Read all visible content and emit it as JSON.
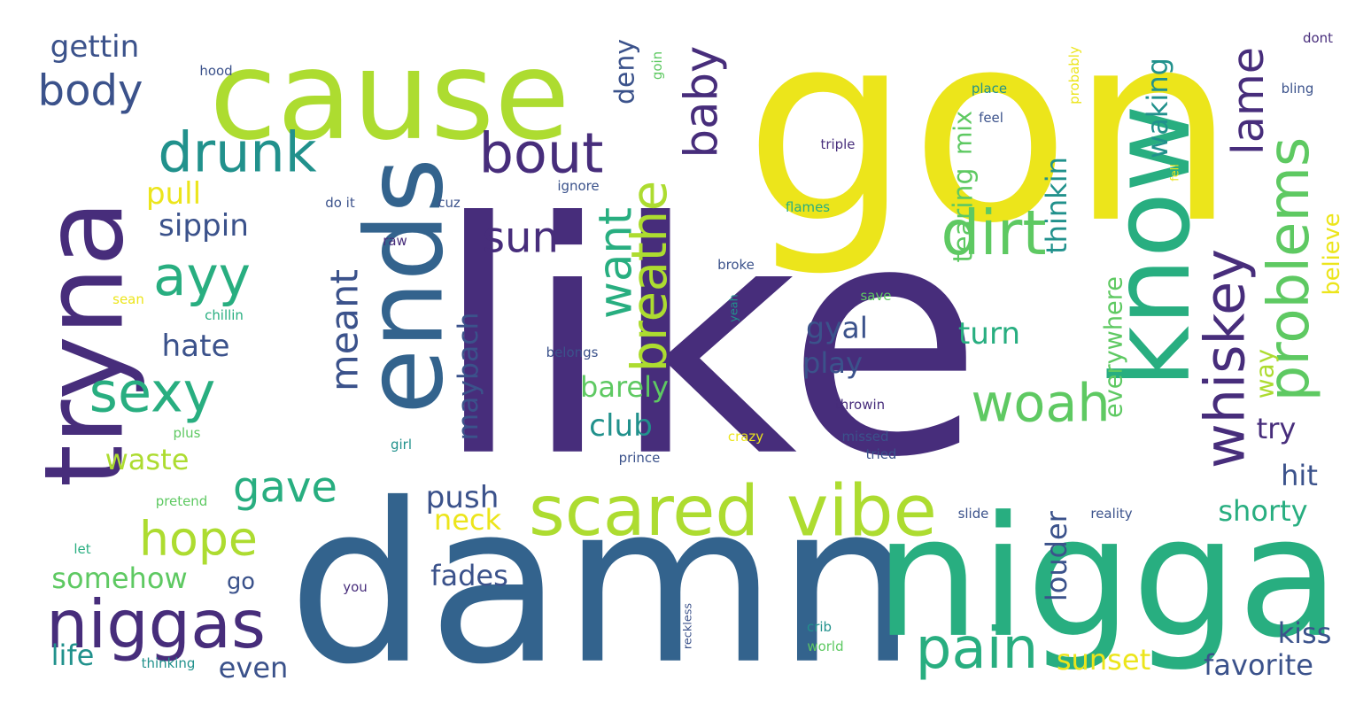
{
  "palette": {
    "dark_purple": "#472d7b",
    "indigo": "#3b528b",
    "blue": "#33638d",
    "teal": "#21918c",
    "green": "#28ae80",
    "light_green": "#5ec962",
    "lime": "#addc30",
    "yellow": "#ece51b"
  },
  "words": [
    {
      "text": "like",
      "color": "dark_purple"
    },
    {
      "text": "gon",
      "color": "yellow"
    },
    {
      "text": "damn",
      "color": "blue"
    },
    {
      "text": "cause",
      "color": "lime"
    },
    {
      "text": "nigga",
      "color": "green"
    },
    {
      "text": "tryna",
      "color": "dark_purple"
    },
    {
      "text": "ends",
      "color": "blue"
    },
    {
      "text": "know",
      "color": "green"
    },
    {
      "text": "scared",
      "color": "lime"
    },
    {
      "text": "vibe",
      "color": "lime"
    },
    {
      "text": "niggas",
      "color": "dark_purple"
    },
    {
      "text": "hope",
      "color": "lime"
    },
    {
      "text": "pain",
      "color": "green"
    },
    {
      "text": "dirt",
      "color": "light_green"
    },
    {
      "text": "drunk",
      "color": "teal"
    },
    {
      "text": "ayy",
      "color": "green"
    },
    {
      "text": "sexy",
      "color": "green"
    },
    {
      "text": "bout",
      "color": "dark_purple"
    },
    {
      "text": "woah",
      "color": "light_green"
    },
    {
      "text": "problems",
      "color": "light_green"
    },
    {
      "text": "whiskey",
      "color": "dark_purple"
    },
    {
      "text": "breathe",
      "color": "lime"
    },
    {
      "text": "want",
      "color": "green"
    },
    {
      "text": "baby",
      "color": "dark_purple"
    },
    {
      "text": "lame",
      "color": "dark_purple"
    },
    {
      "text": "body",
      "color": "indigo"
    },
    {
      "text": "gave",
      "color": "green"
    },
    {
      "text": "sun",
      "color": "dark_purple"
    },
    {
      "text": "meant",
      "color": "indigo"
    },
    {
      "text": "gettin",
      "color": "indigo"
    },
    {
      "text": "sippin",
      "color": "indigo"
    },
    {
      "text": "hate",
      "color": "indigo"
    },
    {
      "text": "pull",
      "color": "yellow"
    },
    {
      "text": "waste",
      "color": "lime"
    },
    {
      "text": "somehow",
      "color": "light_green"
    },
    {
      "text": "life",
      "color": "teal"
    },
    {
      "text": "go",
      "color": "indigo"
    },
    {
      "text": "even",
      "color": "indigo"
    },
    {
      "text": "fades",
      "color": "indigo"
    },
    {
      "text": "push",
      "color": "indigo"
    },
    {
      "text": "neck",
      "color": "yellow"
    },
    {
      "text": "club",
      "color": "teal"
    },
    {
      "text": "barely",
      "color": "light_green"
    },
    {
      "text": "maybach",
      "color": "indigo"
    },
    {
      "text": "deny",
      "color": "indigo"
    },
    {
      "text": "play",
      "color": "indigo"
    },
    {
      "text": "gyal",
      "color": "indigo"
    },
    {
      "text": "turn",
      "color": "green"
    },
    {
      "text": "tearing",
      "color": "light_green"
    },
    {
      "text": "mix",
      "color": "light_green"
    },
    {
      "text": "thinkin",
      "color": "teal"
    },
    {
      "text": "waking",
      "color": "teal"
    },
    {
      "text": "everywhere",
      "color": "light_green"
    },
    {
      "text": "louder",
      "color": "indigo"
    },
    {
      "text": "shorty",
      "color": "green"
    },
    {
      "text": "sunset",
      "color": "yellow"
    },
    {
      "text": "favorite",
      "color": "indigo"
    },
    {
      "text": "kiss",
      "color": "indigo"
    },
    {
      "text": "hit",
      "color": "indigo"
    },
    {
      "text": "try",
      "color": "dark_purple"
    },
    {
      "text": "way",
      "color": "lime"
    },
    {
      "text": "believe",
      "color": "yellow"
    },
    {
      "text": "hood",
      "color": "indigo"
    },
    {
      "text": "goin",
      "color": "light_green"
    },
    {
      "text": "place",
      "color": "teal"
    },
    {
      "text": "feel",
      "color": "indigo"
    },
    {
      "text": "probably",
      "color": "yellow"
    },
    {
      "text": "dont",
      "color": "dark_purple"
    },
    {
      "text": "bling",
      "color": "indigo"
    },
    {
      "text": "fell",
      "color": "yellow"
    },
    {
      "text": "triple",
      "color": "dark_purple"
    },
    {
      "text": "ignore",
      "color": "indigo"
    },
    {
      "text": "do it",
      "color": "indigo"
    },
    {
      "text": "cuz",
      "color": "indigo"
    },
    {
      "text": "flames",
      "color": "green"
    },
    {
      "text": "raw",
      "color": "dark_purple"
    },
    {
      "text": "broke",
      "color": "indigo"
    },
    {
      "text": "sean",
      "color": "yellow"
    },
    {
      "text": "chillin",
      "color": "green"
    },
    {
      "text": "yeah",
      "color": "teal"
    },
    {
      "text": "save",
      "color": "light_green"
    },
    {
      "text": "belongs",
      "color": "indigo"
    },
    {
      "text": "throwin",
      "color": "dark_purple"
    },
    {
      "text": "plus",
      "color": "light_green"
    },
    {
      "text": "girl",
      "color": "teal"
    },
    {
      "text": "crazy",
      "color": "yellow"
    },
    {
      "text": "missed",
      "color": "indigo"
    },
    {
      "text": "tried",
      "color": "indigo"
    },
    {
      "text": "prince",
      "color": "indigo"
    },
    {
      "text": "pretend",
      "color": "light_green"
    },
    {
      "text": "let",
      "color": "green"
    },
    {
      "text": "you",
      "color": "dark_purple"
    },
    {
      "text": "reckless",
      "color": "indigo"
    },
    {
      "text": "slide",
      "color": "indigo"
    },
    {
      "text": "reality",
      "color": "indigo"
    },
    {
      "text": "crib",
      "color": "teal"
    },
    {
      "text": "world",
      "color": "light_green"
    },
    {
      "text": "thinking",
      "color": "teal"
    }
  ]
}
